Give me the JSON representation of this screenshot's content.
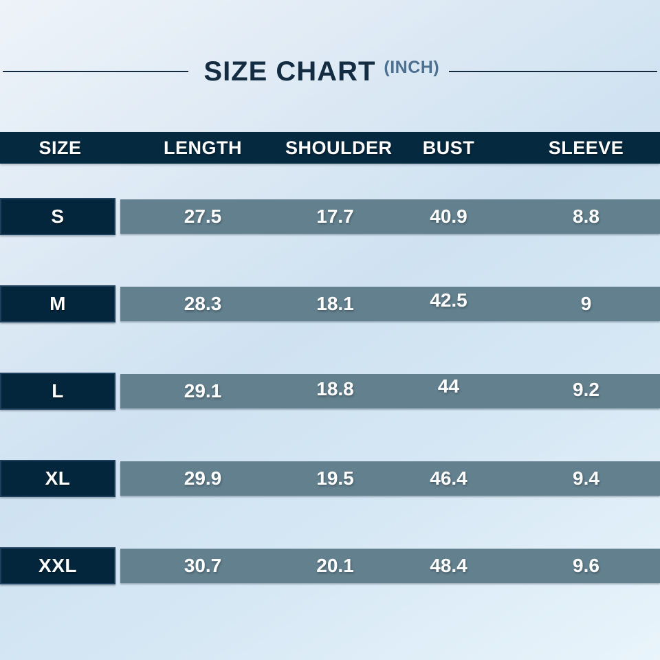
{
  "title": {
    "text": "SIZE CHART",
    "unit": "(INCH)"
  },
  "chart_data": {
    "type": "table",
    "title": "SIZE CHART (INCH)",
    "unit": "inch",
    "columns": [
      "SIZE",
      "LENGTH",
      "SHOULDER",
      "BUST",
      "SLEEVE"
    ],
    "rows": [
      {
        "size": "S",
        "values": [
          "27.5",
          "17.7",
          "40.9",
          "8.8"
        ]
      },
      {
        "size": "M",
        "values": [
          "28.3",
          "18.1",
          "42.5",
          "9"
        ]
      },
      {
        "size": "L",
        "values": [
          "29.1",
          "18.8",
          "44",
          "9.2"
        ]
      },
      {
        "size": "XL",
        "values": [
          "29.9",
          "19.5",
          "46.4",
          "9.4"
        ]
      },
      {
        "size": "XXL",
        "values": [
          "30.7",
          "20.1",
          "48.4",
          "9.6"
        ]
      }
    ]
  },
  "colors": {
    "header_navy": "#05293F",
    "size_box_navy": "#03263C",
    "bar_slate": "#63808F",
    "title_text": "#142C42",
    "unit_text": "#4D7090",
    "value_text": "#FFFFFF",
    "divider_line": "#15293C",
    "background_light": "#EEF3F9",
    "background_mid": "#CFE2F1"
  }
}
